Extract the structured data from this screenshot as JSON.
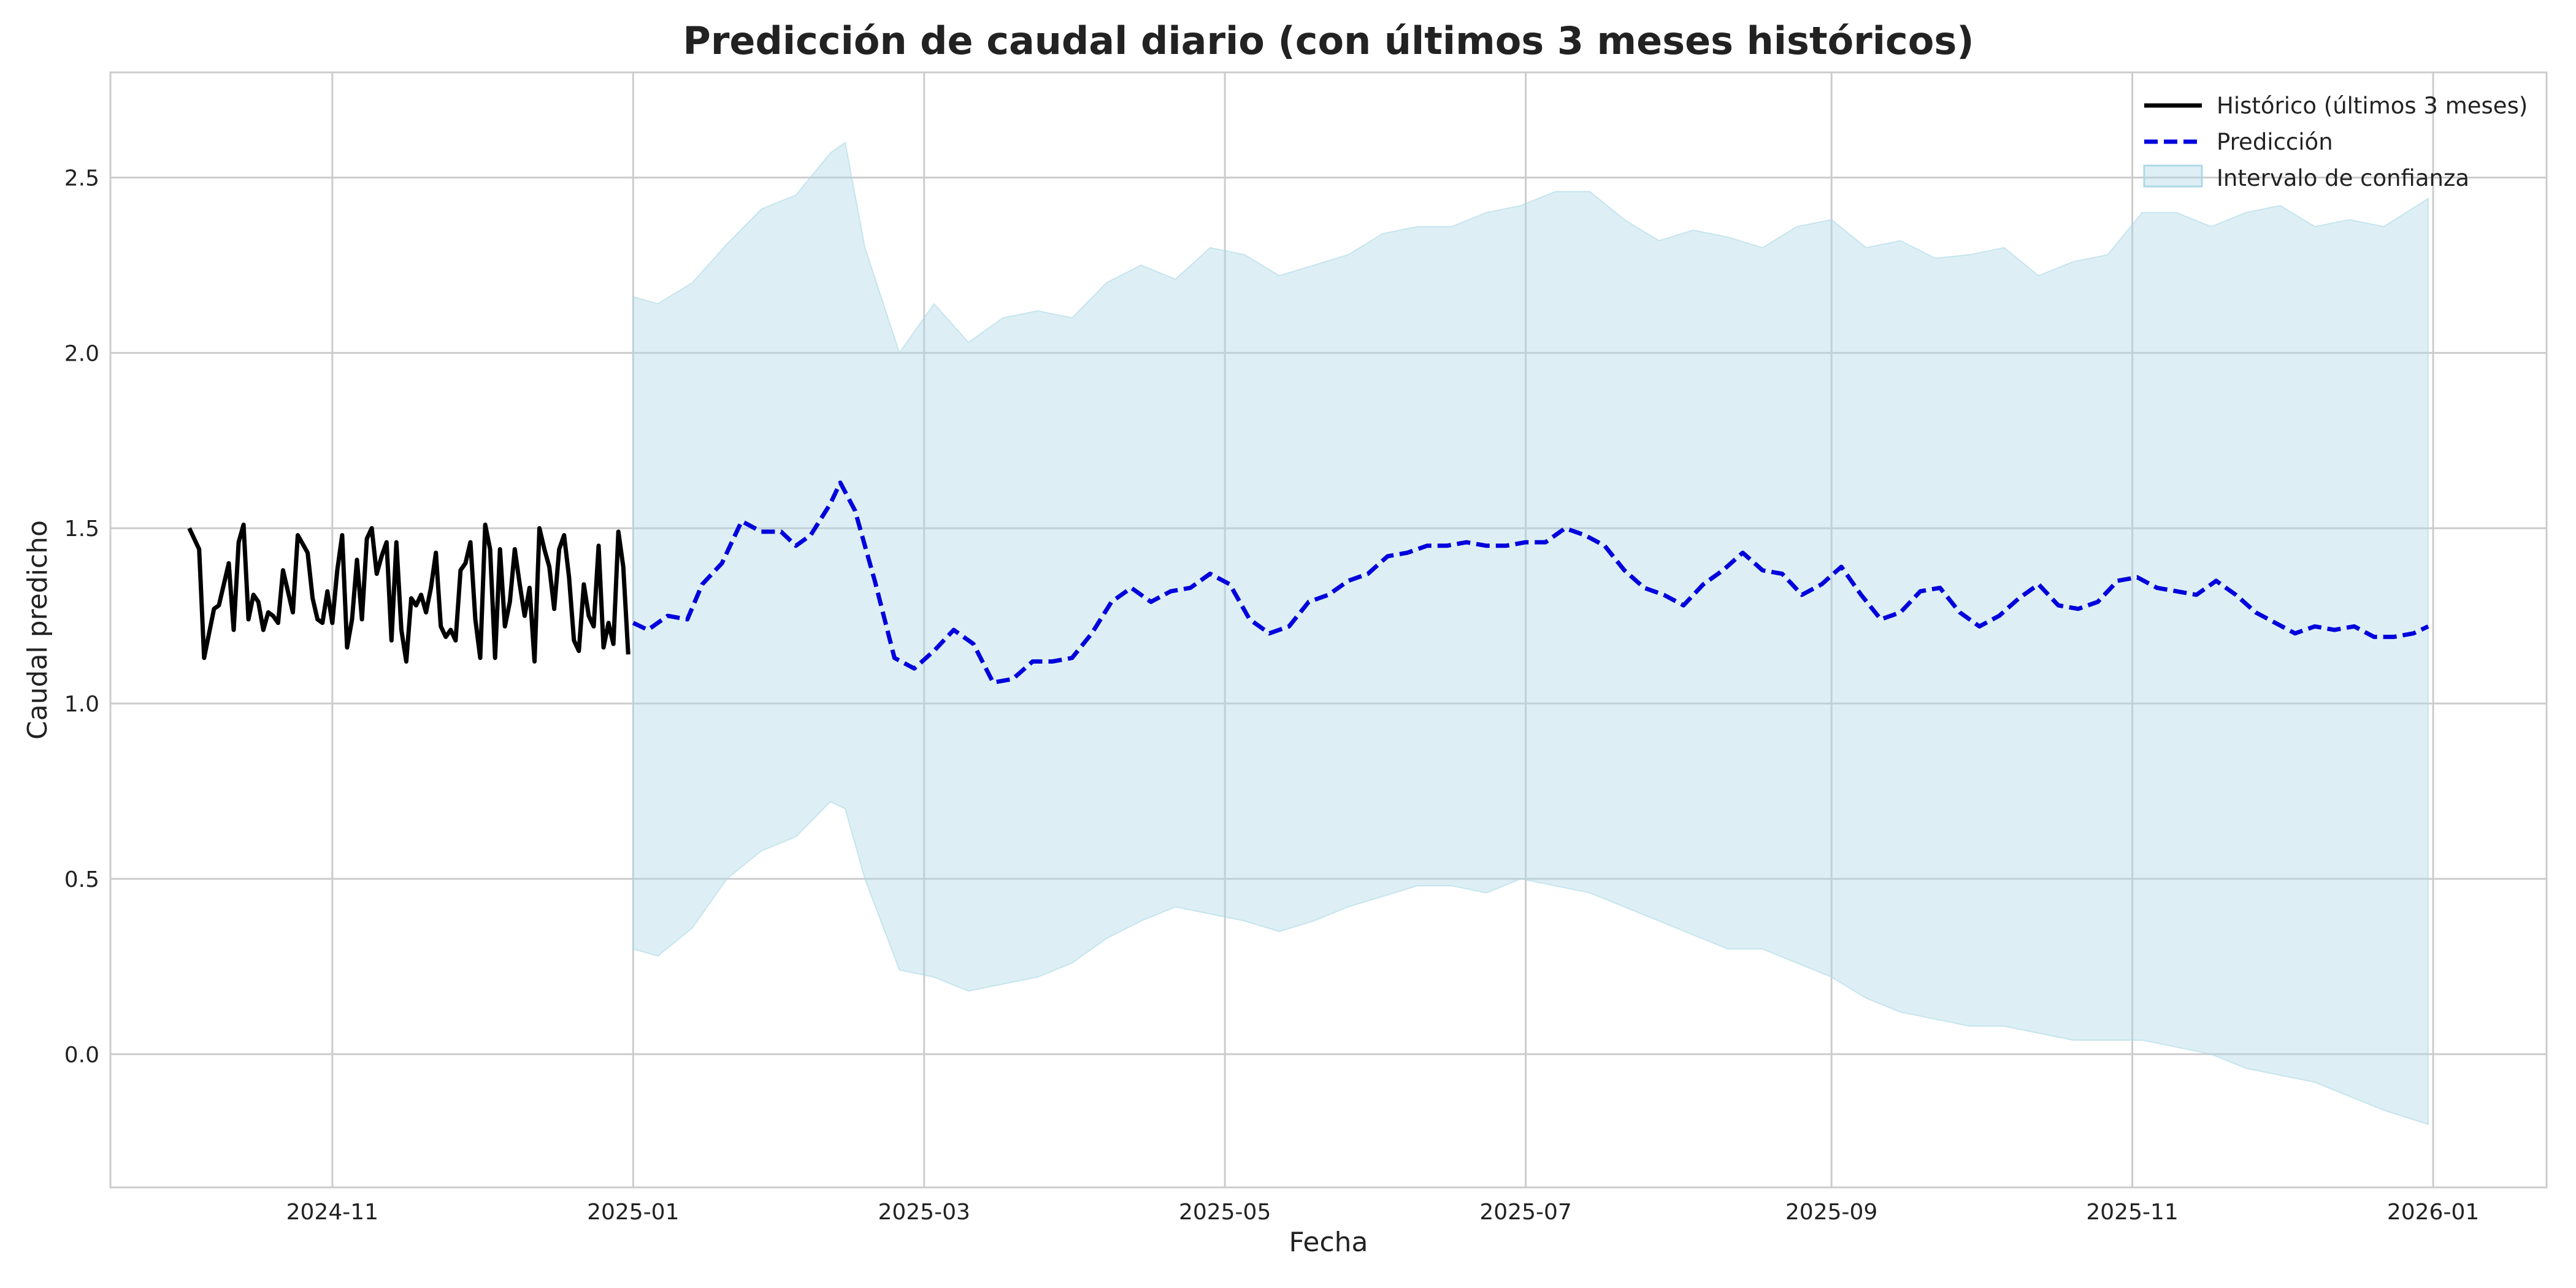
{
  "chart_data": {
    "type": "line",
    "title": "Predicción de caudal diario (con últimos 3 meses históricos)",
    "xlabel": "Fecha",
    "ylabel": "Caudal predicho",
    "xlim": [
      "2024-09-17",
      "2026-01-24"
    ],
    "ylim": [
      -0.38,
      2.8
    ],
    "x_ticks": [
      "2024-11-01",
      "2025-01-01",
      "2025-03-01",
      "2025-05-01",
      "2025-07-01",
      "2025-09-01",
      "2025-11-01",
      "2026-01-01"
    ],
    "x_tick_labels": [
      "2024-11",
      "2025-01",
      "2025-03",
      "2025-05",
      "2025-07",
      "2025-09",
      "2025-11",
      "2026-01"
    ],
    "y_ticks": [
      0.0,
      0.5,
      1.0,
      1.5,
      2.0,
      2.5
    ],
    "y_tick_labels": [
      "0.0",
      "0.5",
      "1.0",
      "1.5",
      "2.0",
      "2.5"
    ],
    "grid": true,
    "legend_position": "top-right",
    "colors": {
      "historico": "#000000",
      "prediccion": "#0000dd",
      "intervalo": "#add8e6"
    },
    "series": [
      {
        "name": "Histórico (últimos 3 meses)",
        "style": "solid",
        "x": [
          "2024-10-03",
          "2024-10-05",
          "2024-10-06",
          "2024-10-08",
          "2024-10-09",
          "2024-10-11",
          "2024-10-12",
          "2024-10-13",
          "2024-10-14",
          "2024-10-15",
          "2024-10-16",
          "2024-10-17",
          "2024-10-18",
          "2024-10-19",
          "2024-10-20",
          "2024-10-21",
          "2024-10-22",
          "2024-10-24",
          "2024-10-25",
          "2024-10-27",
          "2024-10-28",
          "2024-10-29",
          "2024-10-30",
          "2024-10-31",
          "2024-11-01",
          "2024-11-02",
          "2024-11-03",
          "2024-11-04",
          "2024-11-05",
          "2024-11-06",
          "2024-11-07",
          "2024-11-08",
          "2024-11-09",
          "2024-11-10",
          "2024-11-11",
          "2024-11-12",
          "2024-11-13",
          "2024-11-14",
          "2024-11-15",
          "2024-11-16",
          "2024-11-17",
          "2024-11-18",
          "2024-11-19",
          "2024-11-20",
          "2024-11-21",
          "2024-11-22",
          "2024-11-23",
          "2024-11-24",
          "2024-11-25",
          "2024-11-26",
          "2024-11-27",
          "2024-11-28",
          "2024-11-29",
          "2024-11-30",
          "2024-12-01",
          "2024-12-02",
          "2024-12-03",
          "2024-12-04",
          "2024-12-05",
          "2024-12-06",
          "2024-12-07",
          "2024-12-08",
          "2024-12-09",
          "2024-12-10",
          "2024-12-11",
          "2024-12-12",
          "2024-12-13",
          "2024-12-14",
          "2024-12-15",
          "2024-12-16",
          "2024-12-17",
          "2024-12-18",
          "2024-12-19",
          "2024-12-20",
          "2024-12-21",
          "2024-12-22",
          "2024-12-23",
          "2024-12-24",
          "2024-12-25",
          "2024-12-26",
          "2024-12-27",
          "2024-12-28",
          "2024-12-29",
          "2024-12-30",
          "2024-12-31"
        ],
        "values": [
          1.5,
          1.44,
          1.13,
          1.27,
          1.28,
          1.4,
          1.21,
          1.46,
          1.51,
          1.24,
          1.31,
          1.29,
          1.21,
          1.26,
          1.25,
          1.23,
          1.38,
          1.26,
          1.48,
          1.43,
          1.3,
          1.24,
          1.23,
          1.32,
          1.23,
          1.38,
          1.48,
          1.16,
          1.24,
          1.41,
          1.24,
          1.47,
          1.5,
          1.37,
          1.42,
          1.46,
          1.18,
          1.46,
          1.21,
          1.12,
          1.3,
          1.28,
          1.31,
          1.26,
          1.33,
          1.43,
          1.22,
          1.19,
          1.21,
          1.18,
          1.38,
          1.4,
          1.46,
          1.24,
          1.13,
          1.51,
          1.44,
          1.13,
          1.44,
          1.22,
          1.29,
          1.44,
          1.34,
          1.25,
          1.33,
          1.12,
          1.5,
          1.44,
          1.39,
          1.27,
          1.44,
          1.48,
          1.36,
          1.18,
          1.15,
          1.34,
          1.25,
          1.22,
          1.45,
          1.16,
          1.23,
          1.17,
          1.49,
          1.39,
          1.14
        ]
      },
      {
        "name": "Predicción",
        "style": "dashed",
        "x": [
          "2025-01-01",
          "2025-01-04",
          "2025-01-08",
          "2025-01-12",
          "2025-01-15",
          "2025-01-19",
          "2025-01-23",
          "2025-01-27",
          "2025-01-31",
          "2025-02-03",
          "2025-02-06",
          "2025-02-10",
          "2025-02-12",
          "2025-02-15",
          "2025-02-19",
          "2025-02-23",
          "2025-02-27",
          "2025-03-03",
          "2025-03-07",
          "2025-03-11",
          "2025-03-15",
          "2025-03-19",
          "2025-03-23",
          "2025-03-27",
          "2025-03-31",
          "2025-04-04",
          "2025-04-08",
          "2025-04-12",
          "2025-04-16",
          "2025-04-20",
          "2025-04-24",
          "2025-04-28",
          "2025-05-02",
          "2025-05-06",
          "2025-05-10",
          "2025-05-14",
          "2025-05-18",
          "2025-05-22",
          "2025-05-26",
          "2025-05-30",
          "2025-06-03",
          "2025-06-07",
          "2025-06-11",
          "2025-06-15",
          "2025-06-19",
          "2025-06-23",
          "2025-06-27",
          "2025-07-01",
          "2025-07-05",
          "2025-07-09",
          "2025-07-13",
          "2025-07-17",
          "2025-07-21",
          "2025-07-25",
          "2025-07-29",
          "2025-08-02",
          "2025-08-06",
          "2025-08-10",
          "2025-08-14",
          "2025-08-18",
          "2025-08-22",
          "2025-08-26",
          "2025-08-30",
          "2025-09-03",
          "2025-09-07",
          "2025-09-11",
          "2025-09-15",
          "2025-09-19",
          "2025-09-23",
          "2025-09-27",
          "2025-10-01",
          "2025-10-05",
          "2025-10-09",
          "2025-10-13",
          "2025-10-17",
          "2025-10-21",
          "2025-10-25",
          "2025-10-29",
          "2025-11-02",
          "2025-11-06",
          "2025-11-10",
          "2025-11-14",
          "2025-11-18",
          "2025-11-22",
          "2025-11-26",
          "2025-11-30",
          "2025-12-04",
          "2025-12-08",
          "2025-12-12",
          "2025-12-16",
          "2025-12-20",
          "2025-12-24",
          "2025-12-28",
          "2025-12-31"
        ],
        "values": [
          1.23,
          1.21,
          1.25,
          1.24,
          1.34,
          1.4,
          1.52,
          1.49,
          1.49,
          1.45,
          1.48,
          1.57,
          1.63,
          1.55,
          1.35,
          1.13,
          1.1,
          1.15,
          1.21,
          1.17,
          1.06,
          1.07,
          1.12,
          1.12,
          1.13,
          1.2,
          1.29,
          1.33,
          1.29,
          1.32,
          1.33,
          1.37,
          1.34,
          1.24,
          1.2,
          1.22,
          1.29,
          1.31,
          1.35,
          1.37,
          1.42,
          1.43,
          1.45,
          1.45,
          1.46,
          1.45,
          1.45,
          1.46,
          1.46,
          1.5,
          1.48,
          1.45,
          1.38,
          1.33,
          1.31,
          1.28,
          1.34,
          1.38,
          1.43,
          1.38,
          1.37,
          1.31,
          1.34,
          1.39,
          1.31,
          1.24,
          1.26,
          1.32,
          1.33,
          1.26,
          1.22,
          1.25,
          1.3,
          1.34,
          1.28,
          1.27,
          1.29,
          1.35,
          1.36,
          1.33,
          1.32,
          1.31,
          1.35,
          1.31,
          1.26,
          1.23,
          1.2,
          1.22,
          1.21,
          1.22,
          1.19,
          1.19,
          1.2,
          1.22
        ]
      }
    ],
    "band": {
      "name": "Intervalo de confianza",
      "x": [
        "2025-01-01",
        "2025-01-06",
        "2025-01-13",
        "2025-01-20",
        "2025-01-27",
        "2025-02-03",
        "2025-02-10",
        "2025-02-13",
        "2025-02-17",
        "2025-02-24",
        "2025-03-03",
        "2025-03-10",
        "2025-03-17",
        "2025-03-24",
        "2025-03-31",
        "2025-04-07",
        "2025-04-14",
        "2025-04-21",
        "2025-04-28",
        "2025-05-05",
        "2025-05-12",
        "2025-05-19",
        "2025-05-26",
        "2025-06-02",
        "2025-06-09",
        "2025-06-16",
        "2025-06-23",
        "2025-06-30",
        "2025-07-07",
        "2025-07-14",
        "2025-07-21",
        "2025-07-28",
        "2025-08-04",
        "2025-08-11",
        "2025-08-18",
        "2025-08-25",
        "2025-09-01",
        "2025-09-08",
        "2025-09-15",
        "2025-09-22",
        "2025-09-29",
        "2025-10-06",
        "2025-10-13",
        "2025-10-20",
        "2025-10-27",
        "2025-11-03",
        "2025-11-10",
        "2025-11-17",
        "2025-11-24",
        "2025-12-01",
        "2025-12-08",
        "2025-12-15",
        "2025-12-22",
        "2025-12-31"
      ],
      "upper": [
        2.16,
        2.14,
        2.2,
        2.31,
        2.41,
        2.45,
        2.57,
        2.6,
        2.3,
        2.0,
        2.14,
        2.03,
        2.1,
        2.12,
        2.1,
        2.2,
        2.25,
        2.21,
        2.3,
        2.28,
        2.22,
        2.25,
        2.28,
        2.34,
        2.36,
        2.36,
        2.4,
        2.42,
        2.46,
        2.46,
        2.38,
        2.32,
        2.35,
        2.33,
        2.3,
        2.36,
        2.38,
        2.3,
        2.32,
        2.27,
        2.28,
        2.3,
        2.22,
        2.26,
        2.28,
        2.4,
        2.4,
        2.36,
        2.4,
        2.42,
        2.36,
        2.38,
        2.36,
        2.44
      ],
      "lower": [
        0.3,
        0.28,
        0.36,
        0.5,
        0.58,
        0.62,
        0.72,
        0.7,
        0.5,
        0.24,
        0.22,
        0.18,
        0.2,
        0.22,
        0.26,
        0.33,
        0.38,
        0.42,
        0.4,
        0.38,
        0.35,
        0.38,
        0.42,
        0.45,
        0.48,
        0.48,
        0.46,
        0.5,
        0.48,
        0.46,
        0.42,
        0.38,
        0.34,
        0.3,
        0.3,
        0.26,
        0.22,
        0.16,
        0.12,
        0.1,
        0.08,
        0.08,
        0.06,
        0.04,
        0.04,
        0.04,
        0.02,
        0.0,
        -0.04,
        -0.06,
        -0.08,
        -0.12,
        -0.16,
        -0.2
      ]
    }
  }
}
